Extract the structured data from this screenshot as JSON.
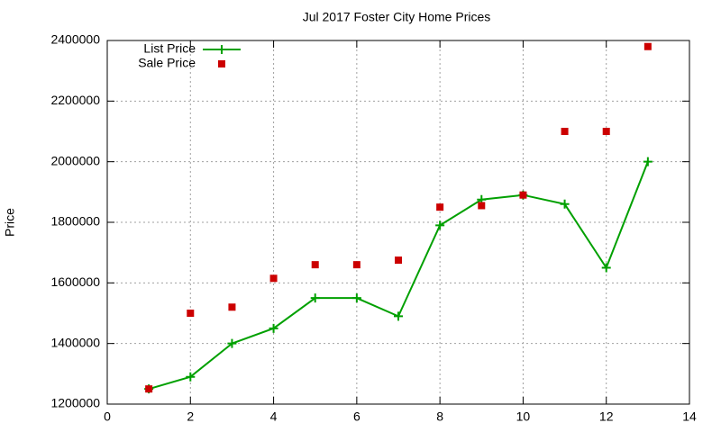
{
  "chart_data": {
    "type": "line",
    "title": "Jul 2017 Foster City Home Prices",
    "y_label": "Price",
    "x": [
      1,
      2,
      3,
      4,
      5,
      6,
      7,
      8,
      9,
      10,
      11,
      12,
      13
    ],
    "series": [
      {
        "name": "List Price",
        "color": "#00a000",
        "style": "linespoints",
        "values": [
          1250000,
          1290000,
          1400000,
          1450000,
          1550000,
          1550000,
          1490000,
          1790000,
          1875000,
          1890000,
          1860000,
          1650000,
          2000000
        ]
      },
      {
        "name": "Sale Price",
        "color": "#cc0000",
        "style": "points",
        "values": [
          1250000,
          1500000,
          1520000,
          1615000,
          1660000,
          1660000,
          1675000,
          1850000,
          1855000,
          1890000,
          2100000,
          2100000,
          2380000
        ]
      }
    ],
    "xlim": [
      0,
      14
    ],
    "xticks": [
      0,
      2,
      4,
      6,
      8,
      10,
      12,
      14
    ],
    "ylim": [
      1200000,
      2400000
    ],
    "yticks": [
      1200000,
      1400000,
      1600000,
      1800000,
      2000000,
      2200000,
      2400000
    ],
    "grid": true,
    "legend": "top-left"
  }
}
